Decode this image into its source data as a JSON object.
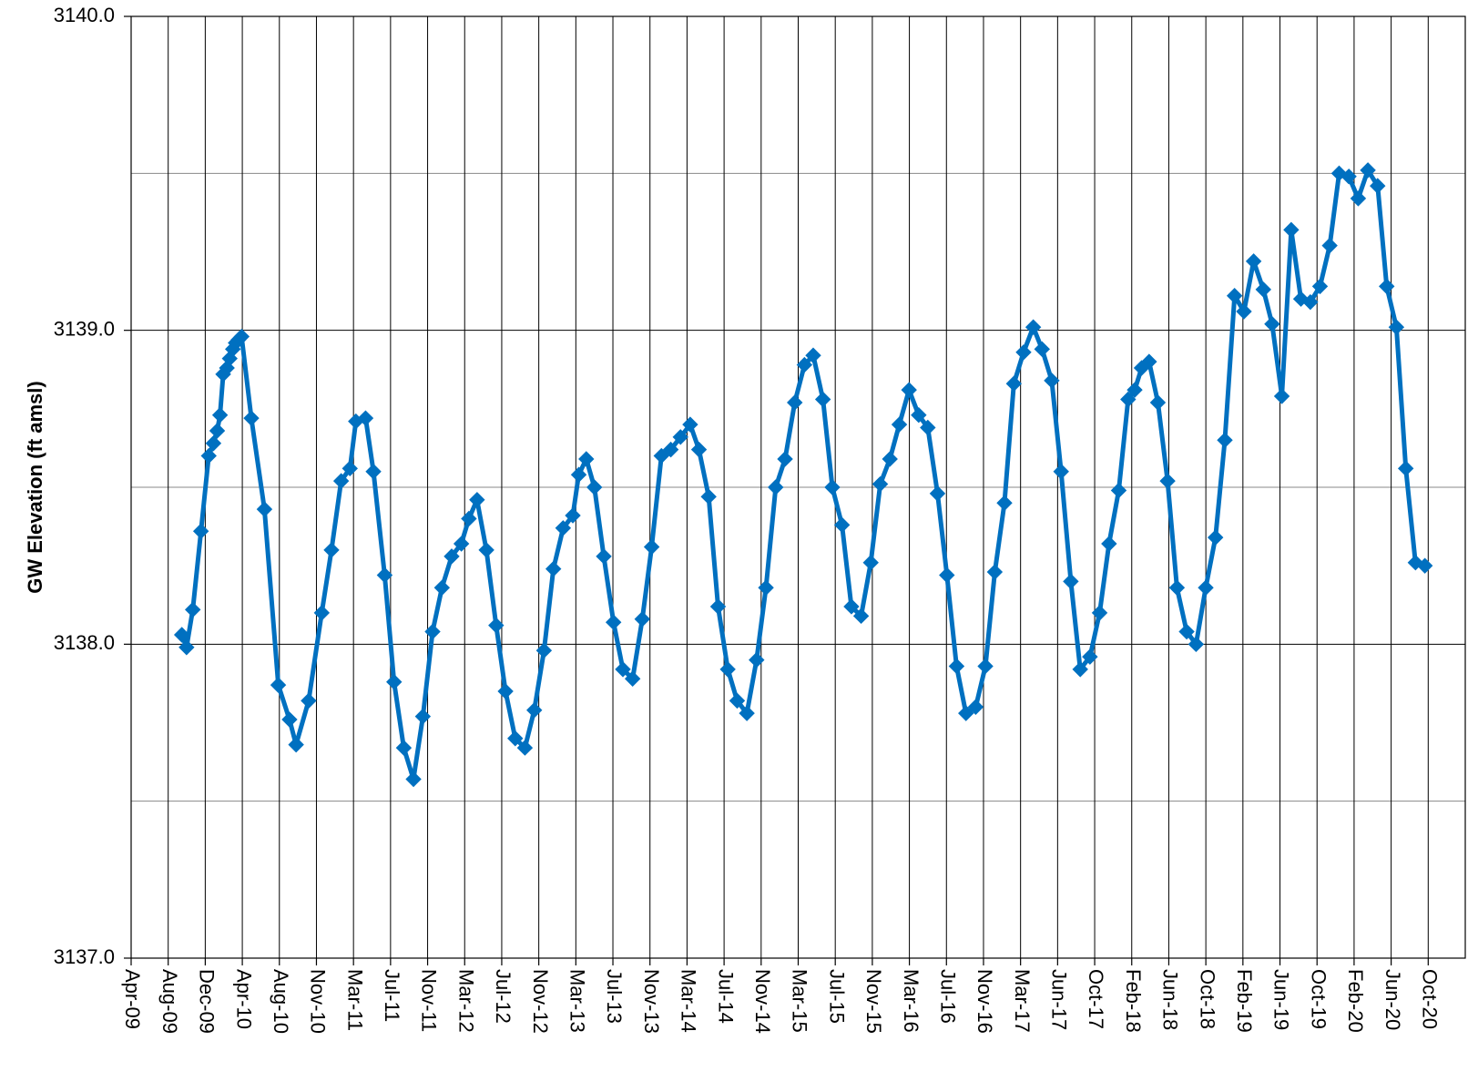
{
  "chart_data": {
    "type": "line",
    "title": "",
    "xlabel": "",
    "ylabel": "GW Elevation (ft amsl)",
    "ylim": [
      3137.0,
      3140.0
    ],
    "xlim": [
      "2009-04-01",
      "2020-12-01"
    ],
    "y_ticks": [
      "3137.0",
      "3138.0",
      "3139.0",
      "3140.0"
    ],
    "x_ticks": [
      "Apr-09",
      "Aug-09",
      "Dec-09",
      "Apr-10",
      "Aug-10",
      "Nov-10",
      "Mar-11",
      "Jul-11",
      "Nov-11",
      "Mar-12",
      "Jul-12",
      "Nov-12",
      "Mar-13",
      "Jul-13",
      "Nov-13",
      "Mar-14",
      "Jul-14",
      "Nov-14",
      "Mar-15",
      "Jul-15",
      "Nov-15",
      "Mar-16",
      "Jul-16",
      "Nov-16",
      "Mar-17",
      "Jun-17",
      "Oct-17",
      "Feb-18",
      "Jun-18",
      "Oct-18",
      "Feb-19",
      "Jun-19",
      "Oct-19",
      "Feb-20",
      "Jun-20",
      "Oct-20"
    ],
    "grid": true,
    "colors": {
      "series": "#0070C0",
      "grid": "#000000"
    },
    "series": [
      {
        "marker": "diamond",
        "points": [
          [
            "2009-09-10",
            3138.03
          ],
          [
            "2009-09-25",
            3137.99
          ],
          [
            "2009-10-15",
            3138.11
          ],
          [
            "2009-11-10",
            3138.36
          ],
          [
            "2009-12-05",
            3138.6
          ],
          [
            "2009-12-20",
            3138.64
          ],
          [
            "2010-01-01",
            3138.68
          ],
          [
            "2010-01-10",
            3138.73
          ],
          [
            "2010-01-20",
            3138.86
          ],
          [
            "2010-02-01",
            3138.88
          ],
          [
            "2010-02-10",
            3138.91
          ],
          [
            "2010-02-20",
            3138.94
          ],
          [
            "2010-03-01",
            3138.96
          ],
          [
            "2010-03-10",
            3138.97
          ],
          [
            "2010-03-20",
            3138.98
          ],
          [
            "2010-04-20",
            3138.72
          ],
          [
            "2010-06-01",
            3138.43
          ],
          [
            "2010-07-15",
            3137.87
          ],
          [
            "2010-08-20",
            3137.76
          ],
          [
            "2010-09-10",
            3137.68
          ],
          [
            "2010-10-20",
            3137.82
          ],
          [
            "2010-12-01",
            3138.1
          ],
          [
            "2011-01-01",
            3138.3
          ],
          [
            "2011-02-01",
            3138.52
          ],
          [
            "2011-03-01",
            3138.56
          ],
          [
            "2011-03-20",
            3138.71
          ],
          [
            "2011-04-20",
            3138.72
          ],
          [
            "2011-05-15",
            3138.55
          ],
          [
            "2011-06-20",
            3138.22
          ],
          [
            "2011-07-20",
            3137.88
          ],
          [
            "2011-08-20",
            3137.67
          ],
          [
            "2011-09-20",
            3137.57
          ],
          [
            "2011-10-20",
            3137.77
          ],
          [
            "2011-11-20",
            3138.04
          ],
          [
            "2011-12-20",
            3138.18
          ],
          [
            "2012-01-20",
            3138.28
          ],
          [
            "2012-02-20",
            3138.32
          ],
          [
            "2012-03-15",
            3138.4
          ],
          [
            "2012-04-10",
            3138.46
          ],
          [
            "2012-05-10",
            3138.3
          ],
          [
            "2012-06-10",
            3138.06
          ],
          [
            "2012-07-10",
            3137.85
          ],
          [
            "2012-08-10",
            3137.7
          ],
          [
            "2012-09-10",
            3137.67
          ],
          [
            "2012-10-10",
            3137.79
          ],
          [
            "2012-11-10",
            3137.98
          ],
          [
            "2012-12-10",
            3138.24
          ],
          [
            "2013-01-10",
            3138.37
          ],
          [
            "2013-02-10",
            3138.41
          ],
          [
            "2013-03-01",
            3138.54
          ],
          [
            "2013-03-25",
            3138.59
          ],
          [
            "2013-04-20",
            3138.5
          ],
          [
            "2013-05-20",
            3138.28
          ],
          [
            "2013-06-20",
            3138.07
          ],
          [
            "2013-07-20",
            3137.92
          ],
          [
            "2013-08-20",
            3137.89
          ],
          [
            "2013-09-20",
            3138.08
          ],
          [
            "2013-10-20",
            3138.31
          ],
          [
            "2013-11-20",
            3138.6
          ],
          [
            "2013-12-20",
            3138.62
          ],
          [
            "2014-01-20",
            3138.66
          ],
          [
            "2014-02-20",
            3138.7
          ],
          [
            "2014-03-20",
            3138.62
          ],
          [
            "2014-04-20",
            3138.47
          ],
          [
            "2014-05-20",
            3138.12
          ],
          [
            "2014-06-20",
            3137.92
          ],
          [
            "2014-07-20",
            3137.82
          ],
          [
            "2014-08-20",
            3137.78
          ],
          [
            "2014-09-20",
            3137.95
          ],
          [
            "2014-10-20",
            3138.18
          ],
          [
            "2014-11-20",
            3138.5
          ],
          [
            "2014-12-20",
            3138.59
          ],
          [
            "2015-01-20",
            3138.77
          ],
          [
            "2015-02-20",
            3138.89
          ],
          [
            "2015-03-20",
            3138.92
          ],
          [
            "2015-04-20",
            3138.78
          ],
          [
            "2015-05-20",
            3138.5
          ],
          [
            "2015-06-20",
            3138.38
          ],
          [
            "2015-07-20",
            3138.12
          ],
          [
            "2015-08-20",
            3138.09
          ],
          [
            "2015-09-20",
            3138.26
          ],
          [
            "2015-10-20",
            3138.51
          ],
          [
            "2015-11-20",
            3138.59
          ],
          [
            "2015-12-20",
            3138.7
          ],
          [
            "2016-01-20",
            3138.81
          ],
          [
            "2016-02-20",
            3138.73
          ],
          [
            "2016-03-20",
            3138.69
          ],
          [
            "2016-04-20",
            3138.48
          ],
          [
            "2016-05-20",
            3138.22
          ],
          [
            "2016-06-20",
            3137.93
          ],
          [
            "2016-07-20",
            3137.78
          ],
          [
            "2016-08-20",
            3137.8
          ],
          [
            "2016-09-20",
            3137.93
          ],
          [
            "2016-10-20",
            3138.23
          ],
          [
            "2016-11-20",
            3138.45
          ],
          [
            "2016-12-20",
            3138.83
          ],
          [
            "2017-01-20",
            3138.93
          ],
          [
            "2017-02-20",
            3139.01
          ],
          [
            "2017-03-20",
            3138.94
          ],
          [
            "2017-04-20",
            3138.84
          ],
          [
            "2017-05-20",
            3138.55
          ],
          [
            "2017-06-20",
            3138.2
          ],
          [
            "2017-07-20",
            3137.92
          ],
          [
            "2017-08-20",
            3137.96
          ],
          [
            "2017-09-20",
            3138.1
          ],
          [
            "2017-10-20",
            3138.32
          ],
          [
            "2017-11-20",
            3138.49
          ],
          [
            "2017-12-20",
            3138.78
          ],
          [
            "2018-01-10",
            3138.81
          ],
          [
            "2018-02-01",
            3138.88
          ],
          [
            "2018-02-25",
            3138.9
          ],
          [
            "2018-03-25",
            3138.77
          ],
          [
            "2018-04-25",
            3138.52
          ],
          [
            "2018-05-25",
            3138.18
          ],
          [
            "2018-06-25",
            3138.04
          ],
          [
            "2018-07-25",
            3138.0
          ],
          [
            "2018-08-25",
            3138.18
          ],
          [
            "2018-09-25",
            3138.34
          ],
          [
            "2018-10-25",
            3138.65
          ],
          [
            "2018-11-25",
            3139.11
          ],
          [
            "2018-12-25",
            3139.06
          ],
          [
            "2019-01-25",
            3139.22
          ],
          [
            "2019-02-25",
            3139.13
          ],
          [
            "2019-03-25",
            3139.02
          ],
          [
            "2019-04-25",
            3138.79
          ],
          [
            "2019-05-25",
            3139.32
          ],
          [
            "2019-06-25",
            3139.1
          ],
          [
            "2019-07-25",
            3139.09
          ],
          [
            "2019-08-25",
            3139.14
          ],
          [
            "2019-09-25",
            3139.27
          ],
          [
            "2019-10-25",
            3139.5
          ],
          [
            "2019-11-25",
            3139.49
          ],
          [
            "2019-12-25",
            3139.42
          ],
          [
            "2020-01-25",
            3139.51
          ],
          [
            "2020-02-25",
            3139.46
          ],
          [
            "2020-03-25",
            3139.14
          ],
          [
            "2020-04-25",
            3139.01
          ],
          [
            "2020-05-25",
            3138.56
          ],
          [
            "2020-06-25",
            3138.26
          ],
          [
            "2020-07-25",
            3138.25
          ]
        ]
      }
    ]
  }
}
